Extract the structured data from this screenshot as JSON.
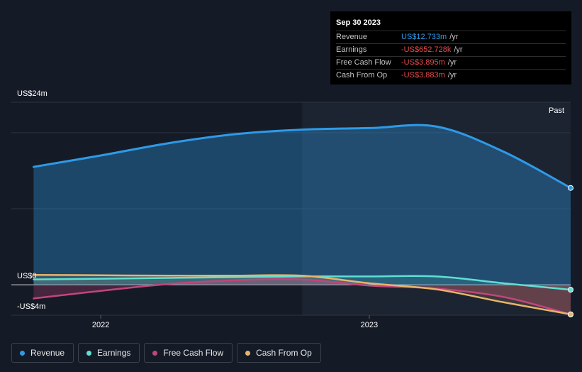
{
  "tooltip": {
    "date": "Sep 30 2023",
    "rows": [
      {
        "label": "Revenue",
        "value": "US$12.733m",
        "unit": "/yr",
        "color": "#2e9ae8"
      },
      {
        "label": "Earnings",
        "value": "-US$652.728k",
        "unit": "/yr",
        "color": "#e84b4b"
      },
      {
        "label": "Free Cash Flow",
        "value": "-US$3.895m",
        "unit": "/yr",
        "color": "#e84b4b"
      },
      {
        "label": "Cash From Op",
        "value": "-US$3.883m",
        "unit": "/yr",
        "color": "#e84b4b"
      }
    ]
  },
  "axis": {
    "y_top_label": "US$24m",
    "y_zero_label": "US$0",
    "y_bottom_label": "-US$4m",
    "past_label": "Past"
  },
  "legend": [
    {
      "label": "Revenue",
      "color": "#2e9ae8"
    },
    {
      "label": "Earnings",
      "color": "#5ee0d2"
    },
    {
      "label": "Free Cash Flow",
      "color": "#c2457e"
    },
    {
      "label": "Cash From Op",
      "color": "#e8b46a"
    }
  ],
  "chart_data": {
    "type": "line",
    "ylim": [
      -4,
      24
    ],
    "x_ticks": [
      {
        "label": "2022",
        "x": 2022.0
      },
      {
        "label": "2023",
        "x": 2023.0
      }
    ],
    "past_start_x": 2022.75,
    "series": [
      {
        "name": "Revenue",
        "color": "#2e9ae8",
        "x": [
          2021.75,
          2022.0,
          2022.25,
          2022.5,
          2022.75,
          2023.0,
          2023.25,
          2023.5,
          2023.75
        ],
        "y": [
          15.5,
          17.0,
          18.6,
          19.8,
          20.4,
          20.6,
          20.8,
          17.5,
          12.733
        ]
      },
      {
        "name": "Earnings",
        "color": "#5ee0d2",
        "x": [
          2021.75,
          2022.0,
          2022.25,
          2022.5,
          2022.75,
          2023.0,
          2023.25,
          2023.5,
          2023.75
        ],
        "y": [
          0.7,
          0.8,
          0.9,
          1.0,
          1.1,
          1.1,
          1.1,
          0.2,
          -0.653
        ]
      },
      {
        "name": "Free Cash Flow",
        "color": "#c2457e",
        "x": [
          2021.75,
          2022.0,
          2022.25,
          2022.5,
          2022.75,
          2023.0,
          2023.25,
          2023.5,
          2023.75
        ],
        "y": [
          -1.8,
          -0.8,
          0.1,
          0.6,
          0.7,
          -0.1,
          -0.5,
          -1.6,
          -3.895
        ]
      },
      {
        "name": "Cash From Op",
        "color": "#e8b46a",
        "x": [
          2021.75,
          2022.0,
          2022.25,
          2022.5,
          2022.75,
          2023.0,
          2023.25,
          2023.5,
          2023.75
        ],
        "y": [
          1.3,
          1.25,
          1.2,
          1.2,
          1.2,
          0.2,
          -0.6,
          -2.3,
          -3.883
        ]
      }
    ]
  }
}
